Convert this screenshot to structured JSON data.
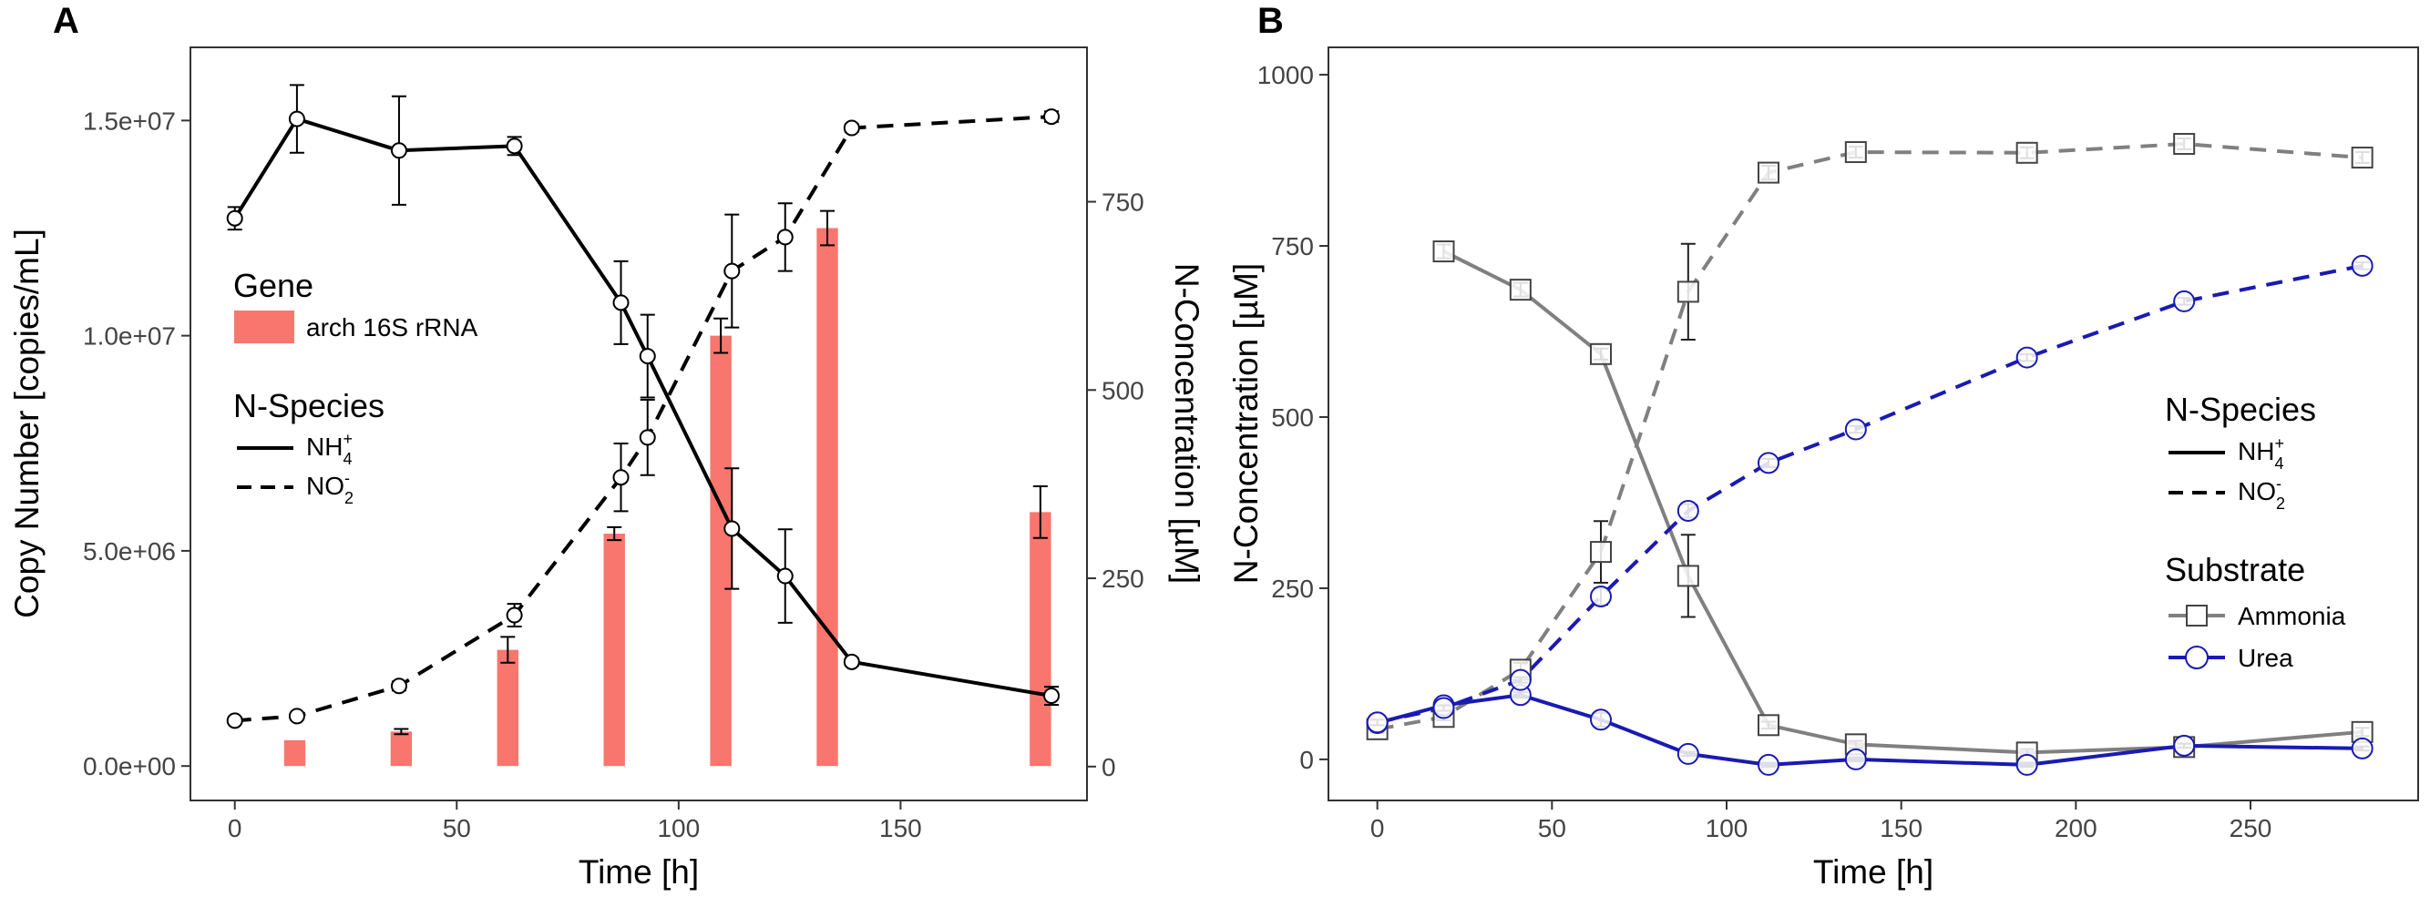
{
  "figure": {
    "panels": [
      "A",
      "B"
    ]
  },
  "colors": {
    "bar": "#f8766d",
    "black": "#000000",
    "ammonia": "#808080",
    "urea": "#1a1ab3",
    "tick": "#444444",
    "frame": "#333333"
  },
  "chart_data": [
    {
      "panel": "A",
      "type": "bar+line",
      "xlabel": "Time [h]",
      "ylabel_left": "Copy Number [copies/mL]",
      "ylabel_right": "N-Concentration [µM]",
      "xlim": [
        -10,
        192
      ],
      "ylim_left": [
        -800000,
        16700000
      ],
      "ylim_right": [
        -45,
        955
      ],
      "xticks": [
        0,
        50,
        100,
        150
      ],
      "xtick_labels": [
        "0",
        "50",
        "100",
        "150"
      ],
      "yticks_left": [
        0,
        5000000,
        10000000,
        15000000
      ],
      "ytick_labels_left": [
        "0.0e+00",
        "5.0e+06",
        "1.0e+07",
        "1.5e+07"
      ],
      "yticks_right": [
        0,
        250,
        500,
        750
      ],
      "ytick_labels_right": [
        "0",
        "250",
        "500",
        "750"
      ],
      "bars": {
        "name": "arch 16S rRNA",
        "width": 4.8,
        "x": [
          13.5,
          37.5,
          61.5,
          85.5,
          109.5,
          133.5,
          181.5
        ],
        "values": [
          600000,
          800000,
          2700000,
          5400000,
          10000000,
          12500000,
          5900000
        ],
        "err": [
          0,
          60000,
          300000,
          150000,
          400000,
          400000,
          600000
        ]
      },
      "series": [
        {
          "name": "NH4+",
          "style": "solid",
          "x": [
            0,
            14,
            37,
            63,
            87,
            93,
            112,
            124,
            139,
            184
          ],
          "values": [
            728,
            860,
            818,
            824,
            616,
            545,
            316,
            253,
            139,
            94
          ],
          "err": [
            15,
            45,
            72,
            12,
            55,
            55,
            80,
            62,
            5,
            12
          ]
        },
        {
          "name": "NO2-",
          "style": "dashed",
          "x": [
            0,
            14,
            37,
            63,
            87,
            93,
            112,
            124,
            139,
            184
          ],
          "values": [
            61,
            67,
            107,
            201,
            384,
            437,
            658,
            703,
            848,
            863
          ],
          "err": [
            3,
            4,
            6,
            15,
            45,
            50,
            75,
            45,
            5,
            7
          ]
        }
      ],
      "legend": {
        "gene_title": "Gene",
        "gene_label": "arch 16S rRNA",
        "species_title": "N-Species",
        "nh4_base": "NH",
        "nh4_sub": "4",
        "nh4_sup": "+",
        "no2_base": "NO",
        "no2_sub": "2",
        "no2_sup": "-"
      }
    },
    {
      "panel": "B",
      "type": "line",
      "xlabel": "Time [h]",
      "ylabel": "N-Concentration [µM]",
      "xlim": [
        -14,
        298
      ],
      "ylim": [
        -60,
        1040
      ],
      "xticks": [
        0,
        50,
        100,
        150,
        200,
        250
      ],
      "xtick_labels": [
        "0",
        "50",
        "100",
        "150",
        "200",
        "250"
      ],
      "yticks": [
        0,
        250,
        500,
        750,
        1000
      ],
      "ytick_labels": [
        "0",
        "250",
        "500",
        "750",
        "1000"
      ],
      "series": [
        {
          "name": "Ammonia NH4+",
          "substrate": "Ammonia",
          "species": "NH4+",
          "style": "solid",
          "x": [
            19,
            41,
            64,
            89,
            112,
            137,
            186,
            231,
            282
          ],
          "values": [
            742,
            686,
            592,
            268,
            50,
            22,
            10,
            18,
            40
          ],
          "err": [
            10,
            10,
            8,
            60,
            5,
            5,
            5,
            6,
            6
          ]
        },
        {
          "name": "Ammonia NO2-",
          "substrate": "Ammonia",
          "species": "NO2-",
          "style": "dashed",
          "x": [
            0,
            19,
            41,
            64,
            89,
            112,
            137,
            186,
            231,
            282
          ],
          "values": [
            44,
            62,
            131,
            303,
            683,
            857,
            887,
            886,
            899,
            879
          ],
          "err": [
            5,
            5,
            10,
            45,
            70,
            10,
            8,
            8,
            8,
            8
          ]
        },
        {
          "name": "Urea NH4+",
          "substrate": "Urea",
          "species": "NH4+",
          "style": "solid",
          "x": [
            0,
            19,
            41,
            64,
            89,
            112,
            137,
            186,
            231,
            282
          ],
          "values": [
            53,
            79,
            94,
            58,
            8,
            -8,
            0,
            -8,
            20,
            16
          ],
          "err": [
            4,
            4,
            4,
            10,
            3,
            3,
            3,
            3,
            3,
            3
          ]
        },
        {
          "name": "Urea NO2-",
          "substrate": "Urea",
          "species": "NO2-",
          "style": "dashed",
          "x": [
            0,
            19,
            41,
            64,
            89,
            112,
            137,
            186,
            231,
            282
          ],
          "values": [
            54,
            75,
            116,
            238,
            363,
            433,
            482,
            587,
            669,
            721
          ],
          "err": [
            4,
            4,
            4,
            12,
            10,
            6,
            5,
            5,
            5,
            5
          ]
        }
      ],
      "legend": {
        "species_title": "N-Species",
        "nh4_base": "NH",
        "nh4_sub": "4",
        "nh4_sup": "+",
        "no2_base": "NO",
        "no2_sub": "2",
        "no2_sup": "-",
        "substrate_title": "Substrate",
        "ammonia_label": "Ammonia",
        "urea_label": "Urea"
      }
    }
  ]
}
